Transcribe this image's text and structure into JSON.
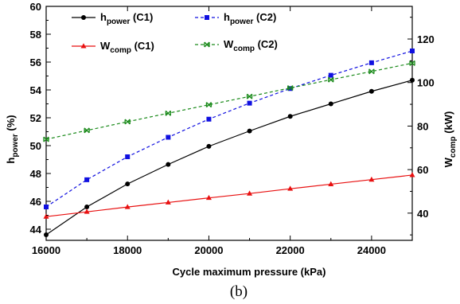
{
  "chart_data": {
    "type": "line",
    "caption": "(b)",
    "x": [
      16000,
      17000,
      18000,
      19000,
      20000,
      21000,
      22000,
      23000,
      24000,
      25000
    ],
    "xlabel": "Cycle maximum pressure (kPa)",
    "xlim": [
      16000,
      25000
    ],
    "xticks": [
      "16000",
      "18000",
      "20000",
      "22000",
      "24000"
    ],
    "ylabel_left": {
      "main": "h",
      "sub": "power",
      "unit": " (%)"
    },
    "ylim_left": [
      43.2,
      60
    ],
    "yticks_left": [
      "44",
      "46",
      "48",
      "50",
      "52",
      "54",
      "56",
      "58",
      "60"
    ],
    "ylabel_right": {
      "main": "W",
      "sub": "comp",
      "unit": " (kW)"
    },
    "ylim_right": [
      27.5,
      135
    ],
    "yticks_right": [
      "40",
      "60",
      "80",
      "100",
      "120"
    ],
    "grid": false,
    "legend_position": "top",
    "series": [
      {
        "name": {
          "main": "h",
          "sub": "power",
          "suffix": " (C1)"
        },
        "axis": "left",
        "color": "#000000",
        "marker": "circle",
        "dash": "solid",
        "values": [
          43.6,
          45.6,
          47.25,
          48.65,
          49.95,
          51.05,
          52.1,
          53.0,
          53.9,
          54.7
        ]
      },
      {
        "name": {
          "main": "h",
          "sub": "power",
          "suffix": " (C2)"
        },
        "axis": "left",
        "color": "#1010e0",
        "marker": "square",
        "dash": "dashed",
        "values": [
          45.6,
          47.55,
          49.2,
          50.6,
          51.9,
          53.05,
          54.1,
          55.05,
          55.95,
          56.8
        ]
      },
      {
        "name": {
          "main": "W",
          "sub": "comp",
          "suffix": " (C1)"
        },
        "axis": "right",
        "color": "#e81010",
        "marker": "triangle",
        "dash": "solid",
        "values": [
          38.4,
          40.6,
          42.8,
          44.9,
          47.0,
          49.0,
          51.2,
          53.3,
          55.4,
          57.5
        ]
      },
      {
        "name": {
          "main": "W",
          "sub": "comp",
          "suffix": " (C2)"
        },
        "axis": "right",
        "color": "#1a8a1a",
        "marker": "x",
        "dash": "dashed",
        "values": [
          73.9,
          78.0,
          82.0,
          85.9,
          89.8,
          93.6,
          97.5,
          101.3,
          105.1,
          108.9
        ]
      }
    ]
  }
}
